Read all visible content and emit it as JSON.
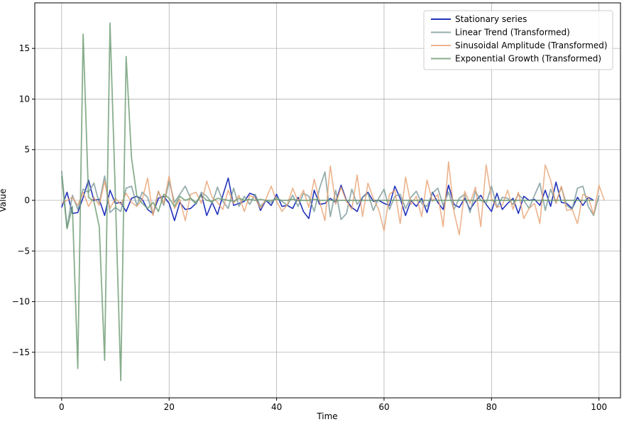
{
  "chart_data": {
    "type": "line",
    "title": "",
    "xlabel": "Time",
    "ylabel": "Value",
    "xlim": [
      -5,
      104
    ],
    "ylim": [
      -19.5,
      19.5
    ],
    "xticks": [
      0,
      20,
      40,
      60,
      80,
      100
    ],
    "yticks": [
      -15,
      -10,
      -5,
      0,
      5,
      10,
      15
    ],
    "xtick_labels": [
      "0",
      "20",
      "40",
      "60",
      "80",
      "100"
    ],
    "ytick_labels": [
      "−15",
      "−10",
      "−5",
      "0",
      "5",
      "10",
      "15"
    ],
    "grid": true,
    "legend_position": "top-right",
    "series": [
      {
        "name": "Stationary series",
        "color": "#2233bb",
        "width": 1.6,
        "opacity": 1,
        "x_start": 0,
        "values": [
          -0.7,
          0.8,
          -1.3,
          -1.2,
          0.3,
          2.0,
          0.0,
          0.1,
          -1.5,
          1.0,
          -0.3,
          -0.2,
          -1.1,
          0.2,
          0.4,
          0.1,
          -0.9,
          -1.3,
          0.2,
          0.4,
          -0.3,
          -2.0,
          -0.2,
          -0.9,
          -0.8,
          -0.3,
          0.6,
          -1.5,
          -0.2,
          -1.4,
          0.5,
          2.2,
          -0.5,
          -0.3,
          -0.1,
          0.7,
          0.5,
          -1.0,
          0.0,
          -0.5,
          0.6,
          -0.6,
          -0.5,
          -0.8,
          0.3,
          -1.1,
          -1.8,
          1.0,
          -0.4,
          -0.3,
          0.2,
          -0.2,
          1.5,
          0.0,
          -0.7,
          -1.1,
          0.3,
          0.8,
          -0.1,
          0.0,
          -0.3,
          -0.5,
          1.4,
          0.2,
          -1.5,
          0.0,
          -0.6,
          0.2,
          -1.2,
          0.8,
          -0.2,
          -0.9,
          1.5,
          -0.4,
          -0.7,
          0.2,
          -0.9,
          -0.1,
          0.5,
          -0.4,
          -1.1,
          0.7,
          -0.9,
          -0.3,
          0.2,
          -1.3,
          0.4,
          0.0,
          0.1,
          -0.5,
          1.0,
          -0.6,
          1.8,
          -0.2,
          -0.3,
          -0.8,
          0.3,
          -0.5,
          0.3,
          0.0
        ]
      },
      {
        "name": "Linear Trend (Transformed)",
        "color": "#7a9a98",
        "width": 1.8,
        "opacity": 0.8,
        "x_start": 0,
        "values": [
          2.9,
          -2.7,
          0.5,
          -0.9,
          1.1,
          0.8,
          1.7,
          -0.3,
          2.4,
          -1.2,
          -0.7,
          -1.1,
          1.2,
          1.4,
          -0.5,
          0.8,
          0.3,
          -1.4,
          0.9,
          -0.5,
          1.9,
          -0.2,
          0.6,
          1.4,
          0.2,
          -0.4,
          0.8,
          0.4,
          -0.3,
          1.3,
          -0.1,
          -0.8,
          1.2,
          -0.6,
          0.4,
          -0.4,
          0.6,
          -0.6,
          0.0,
          -0.2,
          0.3,
          -0.1,
          -0.5,
          0.5,
          -0.6,
          0.7,
          0.4,
          -1.1,
          1.2,
          2.8,
          -1.6,
          1.0,
          -1.9,
          -1.3,
          1.1,
          -0.4,
          0.3,
          0.7,
          -1.0,
          0.2,
          1.1,
          -0.9,
          0.4,
          0.6,
          -0.8,
          0.3,
          0.9,
          -0.3,
          -0.6,
          0.7,
          1.2,
          -0.5,
          0.8,
          -0.9,
          0.2,
          0.6,
          -1.2,
          0.9,
          0.0,
          -0.3,
          1.4,
          -0.7,
          0.3,
          0.2,
          -0.4,
          0.6,
          0.0,
          -0.8,
          0.5,
          1.7,
          -1.0,
          1.1,
          -0.2,
          1.3,
          -0.5,
          -0.9,
          1.2,
          1.4,
          -0.6,
          -1.5,
          0.5
        ]
      },
      {
        "name": "Sinusoidal Amplitude (Transformed)",
        "color": "#e8a070",
        "width": 1.6,
        "opacity": 0.8,
        "x_start": 0,
        "values": [
          -0.3,
          0.0,
          0.3,
          -0.5,
          0.8,
          -0.6,
          0.3,
          -0.5,
          1.9,
          -0.8,
          0.2,
          -0.4,
          0.7,
          -0.2,
          -0.6,
          0.1,
          2.2,
          -1.5,
          0.9,
          -0.3,
          2.4,
          -0.8,
          0.1,
          -2.0,
          0.6,
          0.8,
          -0.3,
          1.9,
          0.3,
          -0.2,
          -0.9,
          1.0,
          -0.3,
          0.5,
          -1.1,
          0.5,
          0.2,
          -0.8,
          0.1,
          1.4,
          -0.1,
          -1.1,
          -0.4,
          1.2,
          -0.1,
          1.0,
          -0.7,
          2.1,
          -0.1,
          -2.0,
          3.4,
          -0.4,
          1.3,
          -0.1,
          -0.9,
          2.5,
          -1.6,
          1.7,
          0.2,
          -0.9,
          -3.0,
          0.6,
          1.0,
          -2.3,
          2.3,
          -0.4,
          0.4,
          -1.6,
          2.0,
          -0.1,
          0.6,
          -2.6,
          3.8,
          -1.1,
          -3.4,
          0.9,
          -0.3,
          1.3,
          -2.6,
          3.5,
          0.2,
          -0.7,
          -0.5,
          1.0,
          -0.9,
          0.8,
          -1.8,
          -0.8,
          -0.3,
          -2.3,
          3.5,
          2.0,
          -0.3,
          1.4,
          -1.0,
          -0.9,
          -2.3,
          0.6,
          0.3,
          -1.4,
          1.5,
          0.0
        ]
      },
      {
        "name": "Exponential Growth (Transformed)",
        "color": "#6a9a70",
        "width": 1.8,
        "opacity": 0.8,
        "x_start": 0,
        "values": [
          2.4,
          -2.8,
          -0.6,
          -16.6,
          16.4,
          0.3,
          -0.1,
          -2.6,
          -15.8,
          17.5,
          0.4,
          -17.8,
          14.2,
          4.2,
          0.4,
          -0.3,
          -0.8,
          -0.2,
          -1.1,
          0.6,
          0.2,
          -0.6,
          0.4,
          0.0,
          0.2,
          -0.2,
          0.5,
          0.0,
          -0.1,
          0.2,
          0.1,
          0.0,
          -0.1,
          0.2,
          0.0,
          0.1,
          0.0,
          0.1,
          0.0,
          0.0,
          0.1,
          0.0,
          0.0,
          0.1,
          0.0,
          0.0,
          0.0,
          0.1,
          0.0,
          0.0,
          0.0,
          0.0,
          0.0,
          0.0,
          0.0,
          0.0,
          0.0,
          0.0,
          0.0,
          0.0,
          0.0,
          0.0,
          0.0,
          0.0,
          0.0,
          0.0,
          0.0,
          0.0,
          0.0,
          0.0,
          0.0,
          0.0,
          0.0,
          0.0,
          0.0,
          0.0,
          0.0,
          0.0,
          0.0,
          0.0,
          0.0,
          0.0,
          0.0,
          0.0,
          0.0,
          0.0,
          0.0,
          0.0,
          0.0,
          0.0,
          0.0,
          0.0,
          0.0,
          0.0,
          0.0,
          0.0,
          0.0,
          0.0,
          0.0,
          0.0
        ]
      }
    ]
  }
}
